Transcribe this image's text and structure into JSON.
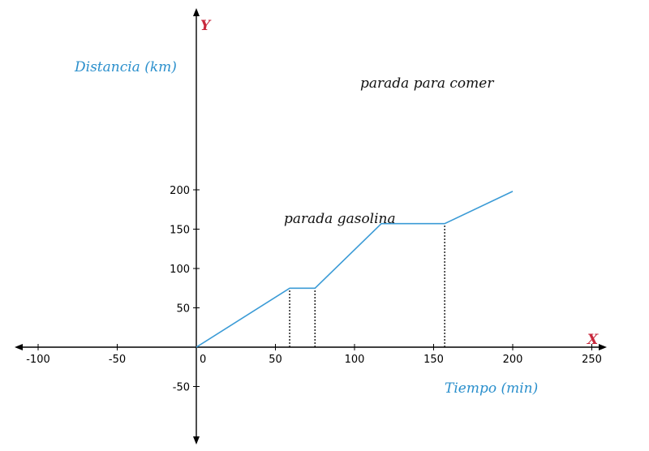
{
  "chart_data": {
    "type": "line",
    "x_axis_letter": "X",
    "y_axis_letter": "Y",
    "xlabel": "Tiempo  (min)",
    "ylabel": "Distancia  (km)",
    "xlim": [
      -110,
      260
    ],
    "ylim": [
      -60,
      210
    ],
    "x_ticks": [
      -100,
      -50,
      0,
      50,
      100,
      150,
      200,
      250
    ],
    "y_ticks": [
      -50,
      50,
      100,
      150,
      200
    ],
    "series": [
      {
        "x": [
          0,
          59,
          75,
          117,
          157,
          200
        ],
        "y": [
          0,
          75,
          75,
          157,
          157,
          198
        ]
      }
    ],
    "annotations": [
      {
        "text": "parada gasolina",
        "x": 60,
        "y": 79
      },
      {
        "text": "parada para comer",
        "x": 103,
        "y": 163
      }
    ],
    "reference_lines": [
      {
        "x": 59,
        "y_from": 0,
        "y_to": 75
      },
      {
        "x": 75,
        "y_from": 0,
        "y_to": 75
      },
      {
        "x": 157,
        "y_from": 0,
        "y_to": 157
      }
    ],
    "colors": {
      "line": "#3b9bd6",
      "axis_letters": "#c8283c",
      "axis_titles": "#2a8fcc",
      "axes": "#000000"
    }
  }
}
